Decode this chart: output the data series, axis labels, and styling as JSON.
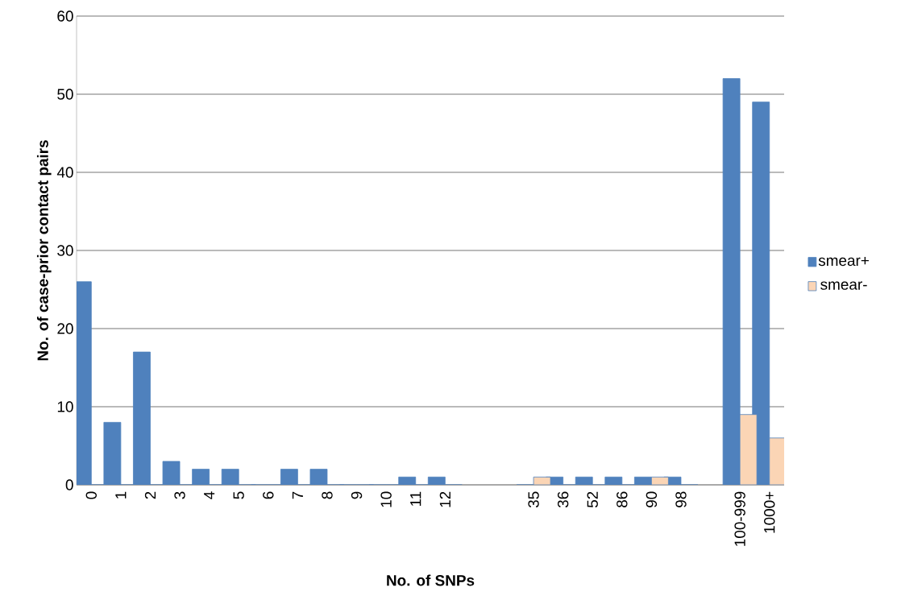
{
  "chart_data": {
    "type": "bar",
    "xlabel": "No. of SNPs",
    "ylabel": "No. of case-prior contact pairs",
    "categories": [
      "0",
      "1",
      "2",
      "3",
      "4",
      "5",
      "6",
      "7",
      "8",
      "9",
      "10",
      "11",
      "12",
      null,
      null,
      "35",
      "36",
      "52",
      "86",
      "90",
      "98",
      null,
      "100-999",
      "1000+"
    ],
    "series": [
      {
        "name": "smear+",
        "color": "#4f81bd",
        "values": [
          26,
          8,
          17,
          3,
          2,
          2,
          0,
          2,
          2,
          0,
          0,
          1,
          1,
          null,
          null,
          0,
          1,
          1,
          1,
          1,
          1,
          null,
          52,
          49
        ]
      },
      {
        "name": "smear-",
        "color": "#fbd5b5",
        "values": [
          0,
          0,
          0,
          0,
          0,
          0,
          0,
          0,
          0,
          0,
          0,
          0,
          0,
          null,
          null,
          1,
          0,
          0,
          0,
          1,
          0,
          null,
          9,
          6
        ]
      }
    ],
    "ylim": [
      0,
      60
    ],
    "yticks": [
      0,
      10,
      20,
      30,
      40,
      50,
      60
    ],
    "grid": "y",
    "legend": "right"
  }
}
